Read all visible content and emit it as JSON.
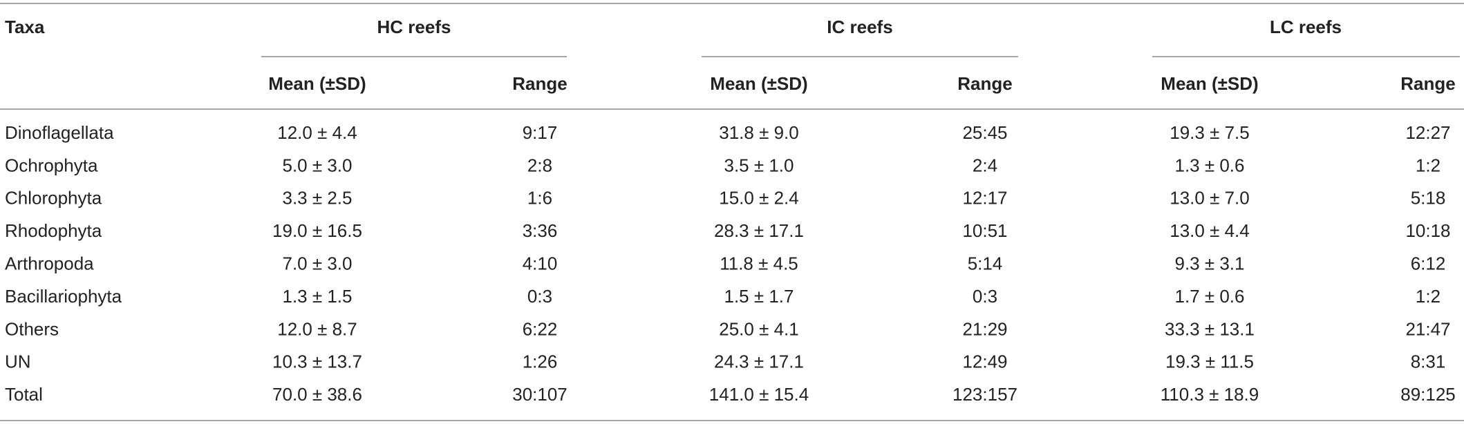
{
  "table": {
    "header": {
      "taxa": "Taxa",
      "groups": [
        "HC reefs",
        "IC reefs",
        "LC reefs"
      ],
      "subheaders": [
        "Mean (±SD)",
        "Range",
        "Mean (±SD)",
        "Range",
        "Mean (±SD)",
        "Range"
      ]
    },
    "rows": [
      [
        "Dinoflagellata",
        "12.0 ± 4.4",
        "9:17",
        "31.8 ± 9.0",
        "25:45",
        "19.3 ± 7.5",
        "12:27"
      ],
      [
        "Ochrophyta",
        "5.0 ± 3.0",
        "2:8",
        "3.5 ± 1.0",
        "2:4",
        "1.3 ± 0.6",
        "1:2"
      ],
      [
        "Chlorophyta",
        "3.3 ± 2.5",
        "1:6",
        "15.0 ± 2.4",
        "12:17",
        "13.0 ± 7.0",
        "5:18"
      ],
      [
        "Rhodophyta",
        "19.0 ± 16.5",
        "3:36",
        "28.3 ± 17.1",
        "10:51",
        "13.0 ± 4.4",
        "10:18"
      ],
      [
        "Arthropoda",
        "7.0 ± 3.0",
        "4:10",
        "11.8 ± 4.5",
        "5:14",
        "9.3 ± 3.1",
        "6:12"
      ],
      [
        "Bacillariophyta",
        "1.3 ± 1.5",
        "0:3",
        "1.5 ± 1.7",
        "0:3",
        "1.7 ± 0.6",
        "1:2"
      ],
      [
        "Others",
        "12.0 ± 8.7",
        "6:22",
        "25.0 ± 4.1",
        "21:29",
        "33.3 ± 13.1",
        "21:47"
      ],
      [
        "UN",
        "10.3 ± 13.7",
        "1:26",
        "24.3 ± 17.1",
        "12:49",
        "19.3 ± 11.5",
        "8:31"
      ],
      [
        "Total",
        "70.0 ± 38.6",
        "30:107",
        "141.0 ± 15.4",
        "123:157",
        "110.3 ± 18.9",
        "89:125"
      ]
    ]
  }
}
